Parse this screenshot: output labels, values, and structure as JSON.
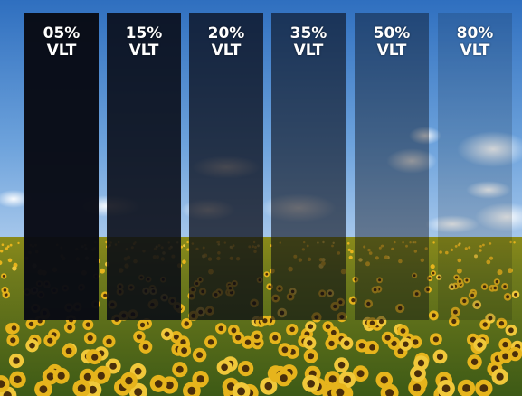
{
  "panels": [
    {
      "percent": "05%",
      "unit": "VLT",
      "opacity": 0.97
    },
    {
      "percent": "15%",
      "unit": "VLT",
      "opacity": 0.88
    },
    {
      "percent": "20%",
      "unit": "VLT",
      "opacity": 0.74
    },
    {
      "percent": "35%",
      "unit": "VLT",
      "opacity": 0.6
    },
    {
      "percent": "50%",
      "unit": "VLT",
      "opacity": 0.42
    },
    {
      "percent": "80%",
      "unit": "VLT",
      "opacity": 0.16
    }
  ]
}
